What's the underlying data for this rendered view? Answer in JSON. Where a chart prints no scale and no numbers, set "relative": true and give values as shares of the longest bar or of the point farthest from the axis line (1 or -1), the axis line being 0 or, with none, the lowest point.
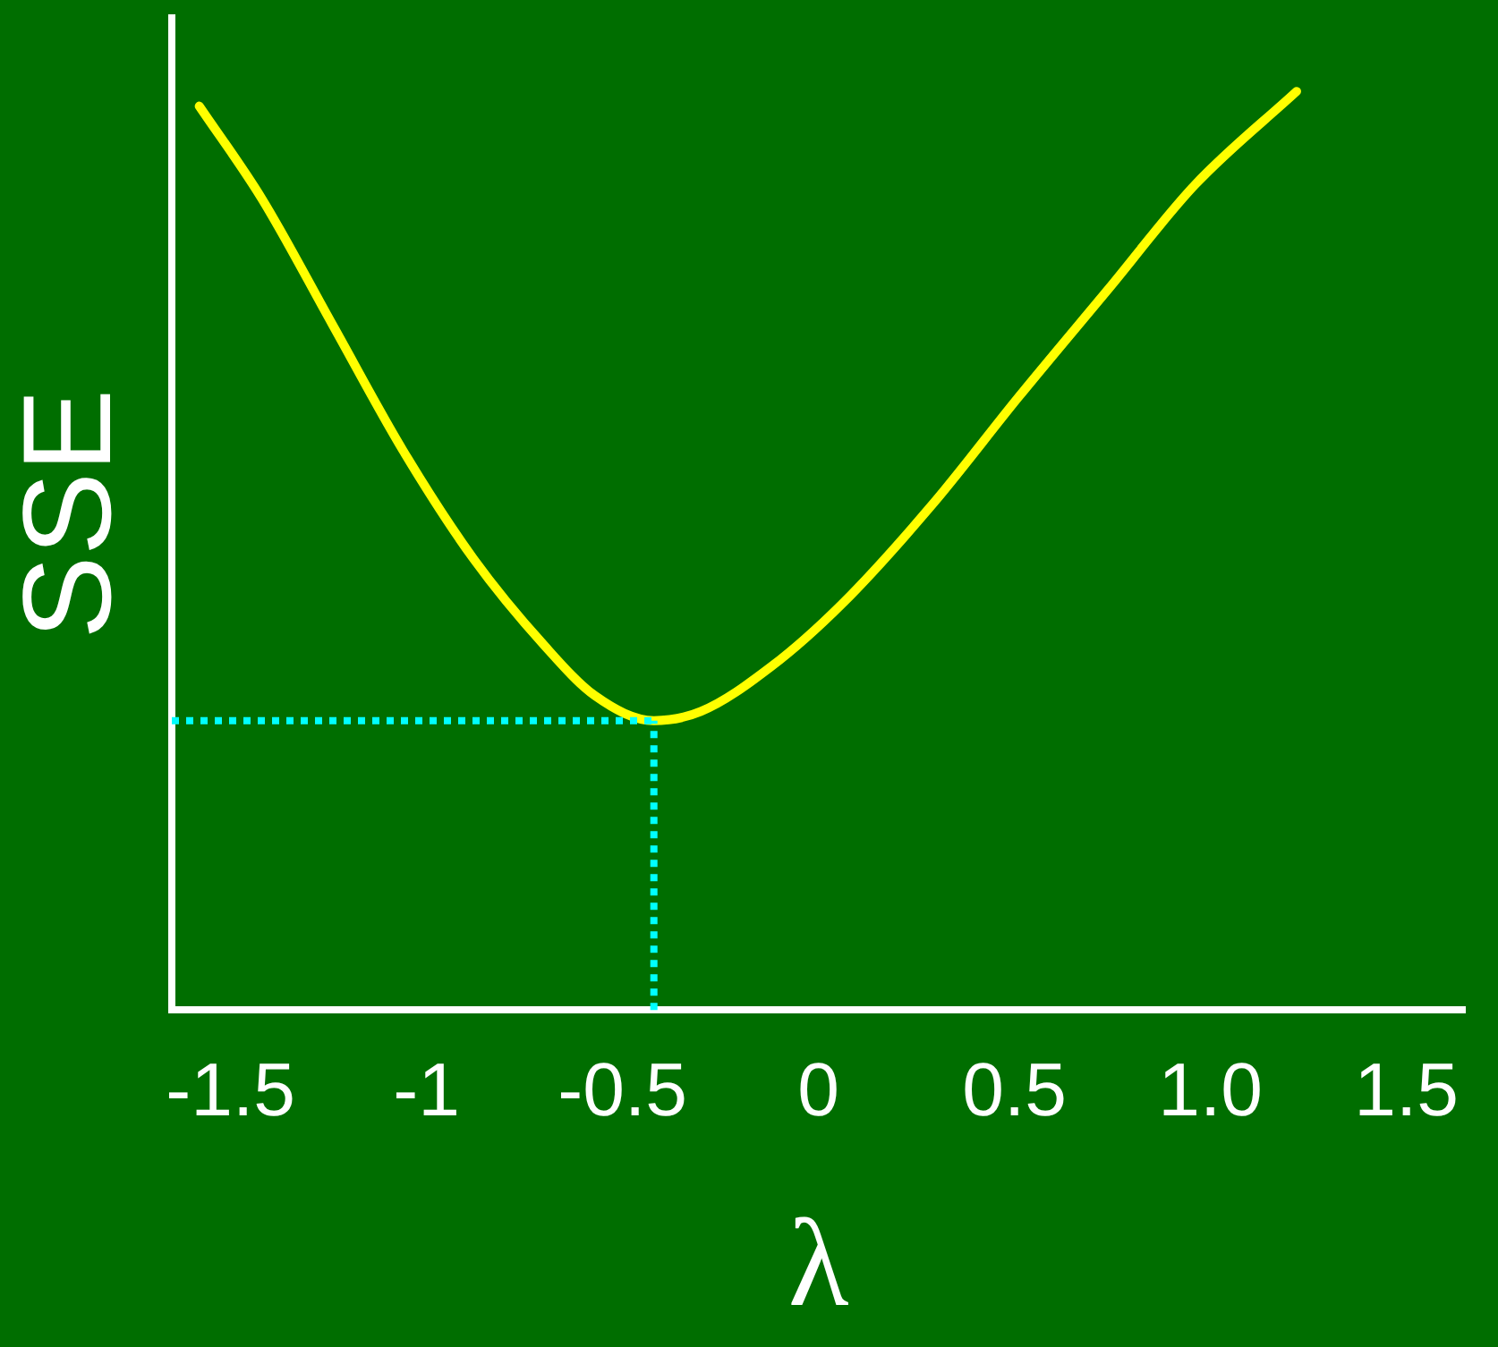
{
  "chart_data": {
    "type": "line",
    "xlabel": "λ",
    "ylabel": "SSE",
    "relative": true,
    "xlim": [
      -1.65,
      1.65
    ],
    "xticks": [
      -1.5,
      -1,
      -0.5,
      0,
      0.5,
      {
        "value": 1,
        "label": "1.0"
      },
      1.5
    ],
    "grid": false,
    "legend": false,
    "marker": "none",
    "line_style": "solid",
    "series": [
      {
        "color": "#ffff00",
        "x": [
          -1.58,
          -1.42,
          -1.24,
          -1.06,
          -0.88,
          -0.7,
          -0.57,
          -0.42,
          -0.3,
          -0.12,
          0.06,
          0.29,
          0.51,
          0.74,
          0.96,
          1.22
        ],
        "values": [
          0.984,
          0.883,
          0.746,
          0.609,
          0.491,
          0.397,
          0.342,
          0.315,
          0.325,
          0.374,
          0.442,
          0.55,
          0.667,
          0.785,
          0.898,
          1.0
        ]
      }
    ],
    "ref_lines": [
      {
        "axis": "x",
        "value": -0.42,
        "color": "#00ffff",
        "line_style": "dotted"
      },
      {
        "axis": "y",
        "value": 0.315,
        "color": "#00ffff",
        "line_style": "dotted"
      }
    ]
  }
}
